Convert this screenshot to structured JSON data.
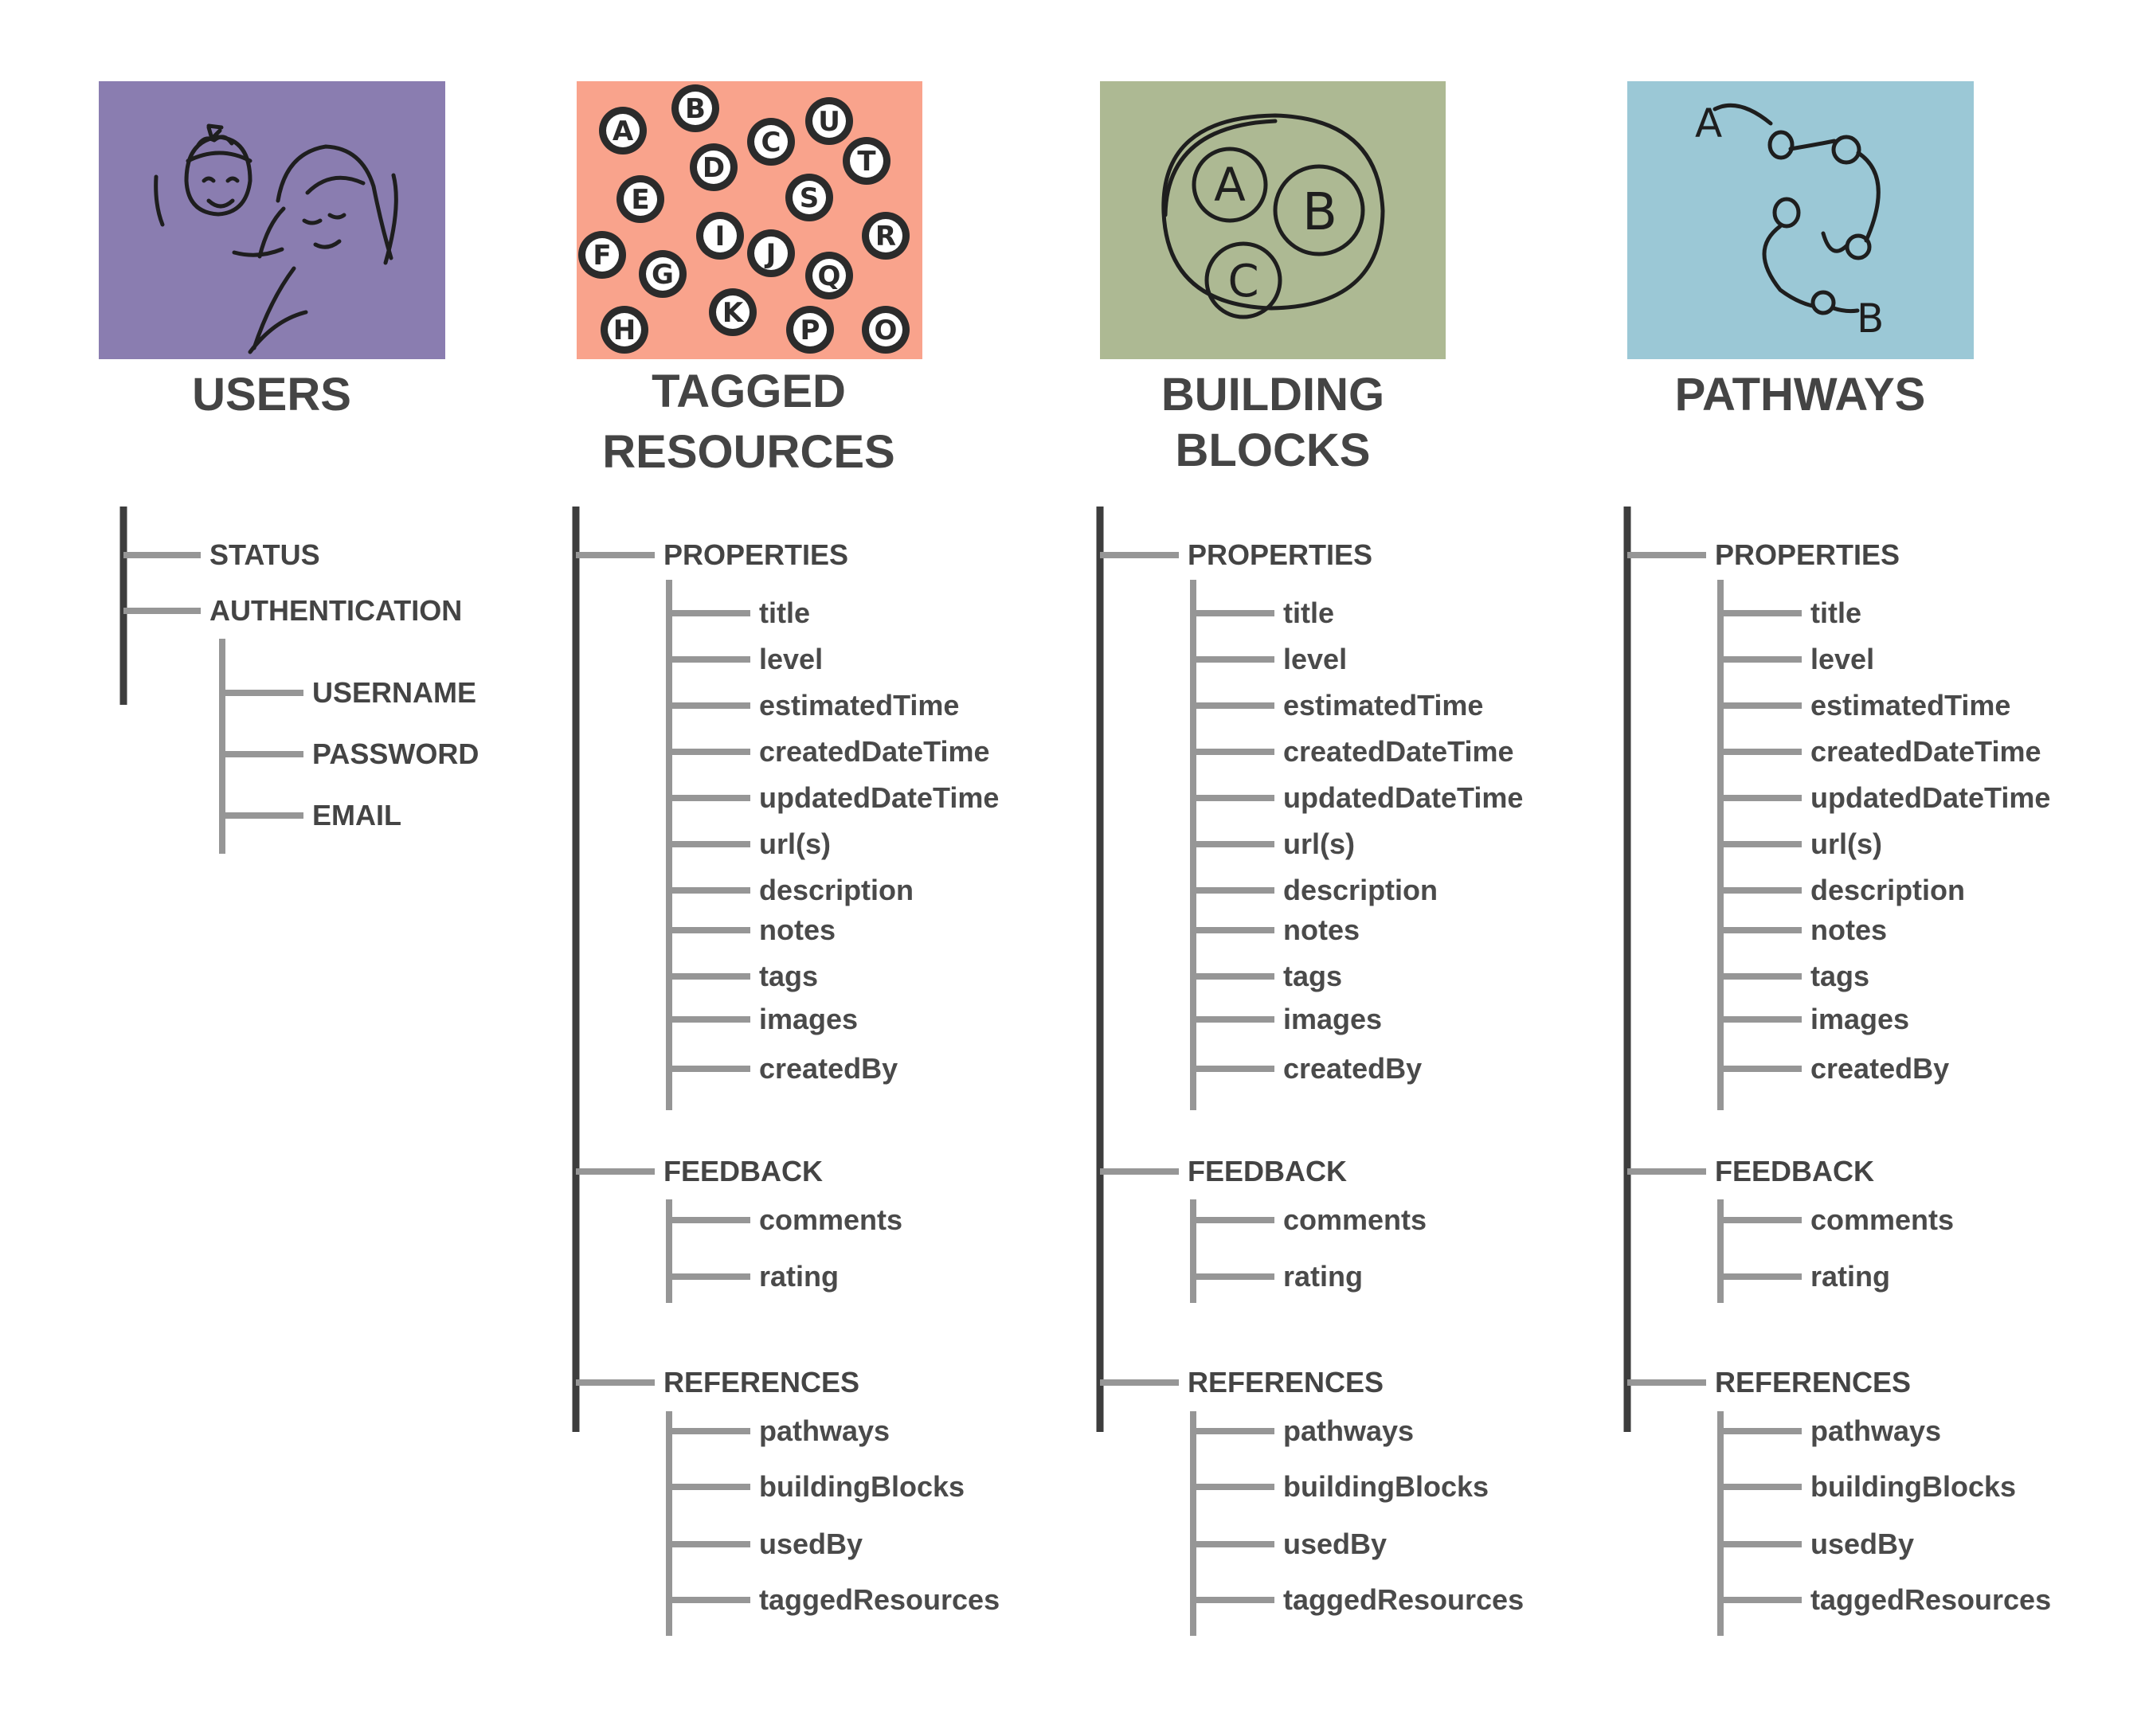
{
  "colors": {
    "users": "#8a7db0",
    "tagged_resources": "#f9a38c",
    "building_blocks": "#adb993",
    "pathways": "#9bc8d6",
    "text": "#444444",
    "trunk_line": "#3d3d3d",
    "branch_line": "#969696"
  },
  "icons": {
    "users": "two-sketched-faces-icon",
    "tagged_resources": "lettered-tag-discs-icon",
    "building_blocks": "nested-circles-abc-icon",
    "pathways": "path-a-to-b-icon"
  },
  "tagged_resources_discs": [
    "A",
    "B",
    "C",
    "U",
    "T",
    "D",
    "E",
    "S",
    "F",
    "G",
    "I",
    "J",
    "R",
    "Q",
    "H",
    "K",
    "P",
    "O"
  ],
  "building_blocks_letters": [
    "A",
    "B",
    "C"
  ],
  "pathways_letters": [
    "A",
    "B"
  ],
  "users": {
    "title": [
      "USERS"
    ],
    "items": [
      "STATUS",
      "AUTHENTICATION"
    ],
    "authentication_children": [
      "USERNAME",
      "PASSWORD",
      "EMAIL"
    ]
  },
  "tagged_resources": {
    "title": [
      "TAGGED",
      "RESOURCES"
    ],
    "sections": [
      {
        "label": "PROPERTIES",
        "children": [
          "title",
          "level",
          "estimatedTime",
          "createdDateTime",
          "updatedDateTime",
          "url(s)",
          "description",
          "notes",
          "tags",
          "images",
          "createdBy"
        ]
      },
      {
        "label": "FEEDBACK",
        "children": [
          "comments",
          "rating"
        ]
      },
      {
        "label": "REFERENCES",
        "children": [
          "pathways",
          "buildingBlocks",
          "usedBy",
          "taggedResources"
        ]
      }
    ]
  },
  "building_blocks": {
    "title": [
      "BUILDING",
      "BLOCKS"
    ],
    "sections": [
      {
        "label": "PROPERTIES",
        "children": [
          "title",
          "level",
          "estimatedTime",
          "createdDateTime",
          "updatedDateTime",
          "url(s)",
          "description",
          "notes",
          "tags",
          "images",
          "createdBy"
        ]
      },
      {
        "label": "FEEDBACK",
        "children": [
          "comments",
          "rating"
        ]
      },
      {
        "label": "REFERENCES",
        "children": [
          "pathways",
          "buildingBlocks",
          "usedBy",
          "taggedResources"
        ]
      }
    ]
  },
  "pathways": {
    "title": [
      "PATHWAYS"
    ],
    "sections": [
      {
        "label": "PROPERTIES",
        "children": [
          "title",
          "level",
          "estimatedTime",
          "createdDateTime",
          "updatedDateTime",
          "url(s)",
          "description",
          "notes",
          "tags",
          "images",
          "createdBy"
        ]
      },
      {
        "label": "FEEDBACK",
        "children": [
          "comments",
          "rating"
        ]
      },
      {
        "label": "REFERENCES",
        "children": [
          "pathways",
          "buildingBlocks",
          "usedBy",
          "taggedResources"
        ]
      }
    ]
  }
}
